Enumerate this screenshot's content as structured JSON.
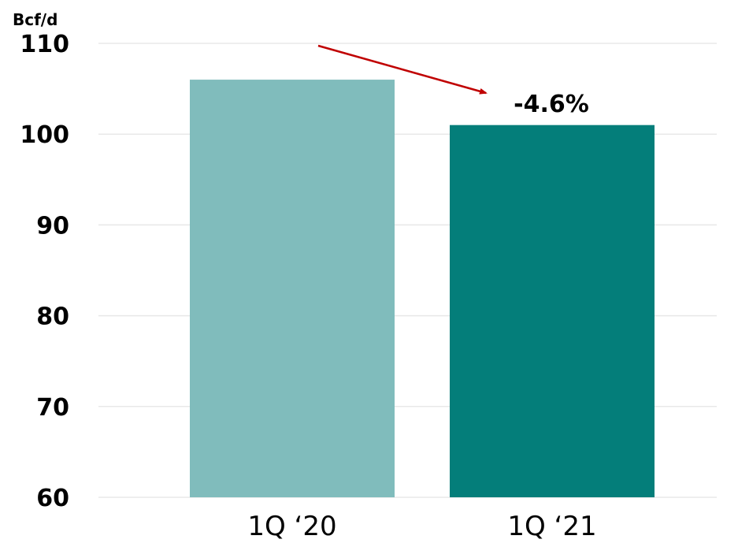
{
  "chart_data": {
    "type": "bar",
    "unit_label": "Bcf/d",
    "categories": [
      "1Q ‘20",
      "1Q ‘21"
    ],
    "values": [
      106,
      101
    ],
    "ylim": [
      60,
      110
    ],
    "yticks": [
      60,
      70,
      80,
      90,
      100,
      110
    ],
    "grid": true,
    "colors": [
      "#80bcbc",
      "#047e7a"
    ],
    "annotation": {
      "text": "-4.6%",
      "arrow_color": "#c00000"
    }
  }
}
